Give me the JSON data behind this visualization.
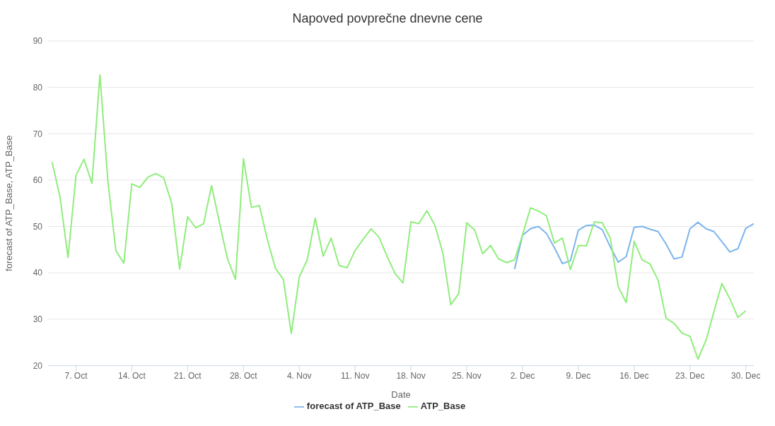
{
  "chart_data": {
    "type": "line",
    "title": "Napoved povprečne dnevne cene",
    "xlabel": "Date",
    "ylabel": "forecast of ATP_Base, ATP_Base",
    "x": [
      "--10-04",
      "--10-05",
      "--10-06",
      "--10-07",
      "--10-08",
      "--10-09",
      "--10-10",
      "--10-11",
      "--10-12",
      "--10-13",
      "--10-14",
      "--10-15",
      "--10-16",
      "--10-17",
      "--10-18",
      "--10-19",
      "--10-20",
      "--10-21",
      "--10-22",
      "--10-23",
      "--10-24",
      "--10-25",
      "--10-26",
      "--10-27",
      "--10-28",
      "--10-29",
      "--10-30",
      "--10-31",
      "--11-01",
      "--11-02",
      "--11-03",
      "--11-04",
      "--11-05",
      "--11-06",
      "--11-07",
      "--11-08",
      "--11-09",
      "--11-10",
      "--11-11",
      "--11-12",
      "--11-13",
      "--11-14",
      "--11-15",
      "--11-16",
      "--11-17",
      "--11-18",
      "--11-19",
      "--11-20",
      "--11-21",
      "--11-22",
      "--11-23",
      "--11-24",
      "--11-25",
      "--11-26",
      "--11-27",
      "--11-28",
      "--11-29",
      "--11-30",
      "--12-01",
      "--12-02",
      "--12-03",
      "--12-04",
      "--12-05",
      "--12-06",
      "--12-07",
      "--12-08",
      "--12-09",
      "--12-10",
      "--12-11",
      "--12-12",
      "--12-13",
      "--12-14",
      "--12-15",
      "--12-16",
      "--12-17",
      "--12-18",
      "--12-19",
      "--12-20",
      "--12-21",
      "--12-22",
      "--12-23",
      "--12-24",
      "--12-25",
      "--12-26",
      "--12-27",
      "--12-28",
      "--12-29",
      "--12-30",
      "--12-31"
    ],
    "series": [
      {
        "name": "forecast of ATP_Base",
        "color": "#7cb5ec",
        "values": [
          null,
          null,
          null,
          null,
          null,
          null,
          null,
          null,
          null,
          null,
          null,
          null,
          null,
          null,
          null,
          null,
          null,
          null,
          null,
          null,
          null,
          null,
          null,
          null,
          null,
          null,
          null,
          null,
          null,
          null,
          null,
          null,
          null,
          null,
          null,
          null,
          null,
          null,
          null,
          null,
          null,
          null,
          null,
          null,
          null,
          null,
          null,
          null,
          null,
          null,
          null,
          null,
          null,
          null,
          null,
          null,
          null,
          null,
          40.8,
          48.1,
          49.5,
          50.0,
          48.5,
          45.4,
          42.0,
          42.6,
          49.2,
          50.2,
          50.3,
          49.3,
          45.6,
          42.3,
          43.5,
          49.8,
          50.0,
          49.4,
          48.9,
          46.2,
          43.0,
          43.4,
          49.5,
          50.9,
          49.5,
          48.9,
          46.7,
          44.5,
          45.2,
          49.6,
          50.6
        ]
      },
      {
        "name": "ATP_Base",
        "color": "#90ed7d",
        "values": [
          63.9,
          56.3,
          43.3,
          61.0,
          64.5,
          59.3,
          82.7,
          59.7,
          44.8,
          42.1,
          59.2,
          58.4,
          60.6,
          61.4,
          60.5,
          55.0,
          40.8,
          52.1,
          49.7,
          50.6,
          58.8,
          50.8,
          43.0,
          38.6,
          64.6,
          54.1,
          54.5,
          47.2,
          41.0,
          38.6,
          26.9,
          39.1,
          42.8,
          51.8,
          43.6,
          47.5,
          41.6,
          41.1,
          44.8,
          47.2,
          49.5,
          47.7,
          43.6,
          39.9,
          37.8,
          51.0,
          50.6,
          53.4,
          50.3,
          44.3,
          33.1,
          35.5,
          50.8,
          49.2,
          44.1,
          45.9,
          43.0,
          42.2,
          42.8,
          48.2,
          54.0,
          53.3,
          52.3,
          46.4,
          47.5,
          40.7,
          45.9,
          45.8,
          51.0,
          50.8,
          47.5,
          37.0,
          33.6,
          46.8,
          42.8,
          41.9,
          38.4,
          30.2,
          29.1,
          27.0,
          26.3,
          21.4,
          25.4,
          31.6,
          37.7,
          34.4,
          30.4,
          31.8,
          null
        ]
      }
    ],
    "xlim": [
      "--10-03T12:00",
      "--12-31T00:00"
    ],
    "xticks": [
      {
        "value": "--10-07",
        "label": "7. Oct"
      },
      {
        "value": "--10-14",
        "label": "14. Oct"
      },
      {
        "value": "--10-21",
        "label": "21. Oct"
      },
      {
        "value": "--10-28",
        "label": "28. Oct"
      },
      {
        "value": "--11-04",
        "label": "4. Nov"
      },
      {
        "value": "--11-11",
        "label": "11. Nov"
      },
      {
        "value": "--11-18",
        "label": "18. Nov"
      },
      {
        "value": "--11-25",
        "label": "25. Nov"
      },
      {
        "value": "--12-02",
        "label": "2. Dec"
      },
      {
        "value": "--12-09",
        "label": "9. Dec"
      },
      {
        "value": "--12-16",
        "label": "16. Dec"
      },
      {
        "value": "--12-23",
        "label": "23. Dec"
      },
      {
        "value": "--12-30",
        "label": "30. Dec"
      }
    ],
    "ylim": [
      20,
      90
    ],
    "yticks": [
      20,
      30,
      40,
      50,
      60,
      70,
      80,
      90
    ],
    "grid": "y",
    "legend": "bottom",
    "marker": "none",
    "line_style": "solid"
  }
}
